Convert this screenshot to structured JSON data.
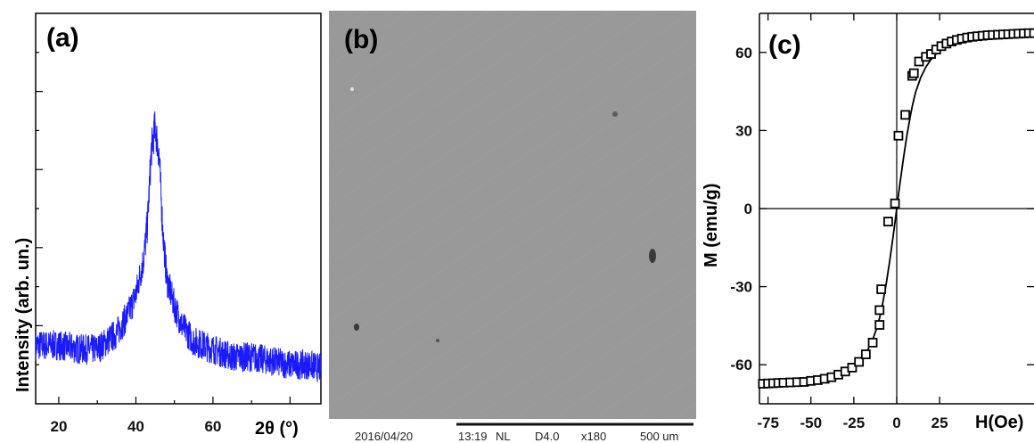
{
  "chart_data": [
    {
      "type": "line",
      "panel_label": "(a)",
      "xlabel": "2θ (°)",
      "ylabel": "Intensity (arb. un.)",
      "xlim": [
        14,
        88
      ],
      "ylim": [
        0,
        10
      ],
      "x_ticks": [
        20,
        40,
        60
      ],
      "y_ticks_labeled": false,
      "color": "#1a1aff",
      "peak_center": 45,
      "series": [
        {
          "x": [
            14,
            20,
            25,
            30,
            35,
            38,
            40,
            42,
            43,
            44,
            45,
            46,
            47,
            48,
            50,
            52,
            55,
            60,
            65,
            70,
            75,
            80,
            85,
            88
          ],
          "y": [
            1.5,
            1.5,
            1.4,
            1.4,
            1.8,
            2.3,
            2.8,
            3.7,
            4.6,
            6.5,
            7.1,
            6.4,
            4.4,
            3.2,
            2.5,
            2.0,
            1.6,
            1.4,
            1.2,
            1.2,
            1.1,
            1.0,
            1.0,
            0.9
          ]
        }
      ]
    },
    {
      "type": "image",
      "panel_label": "(b)",
      "footer": {
        "date": "2016/04/20",
        "time": "13:19",
        "mode": "NL",
        "detector": "D4.0",
        "magnification": "x180",
        "scale": "500 um"
      }
    },
    {
      "type": "line",
      "panel_label": "(c)",
      "ylabel": "M (emu/g)",
      "xlabel": "H(Oe)",
      "xlim": [
        -80,
        80
      ],
      "ylim": [
        -75,
        75
      ],
      "x_ticks": [
        -75,
        -50,
        -25,
        0,
        25
      ],
      "y_ticks": [
        -60,
        -30,
        0,
        30,
        60
      ],
      "marker": "open-square",
      "series": [
        {
          "x": [
            -80,
            -77,
            -74,
            -71,
            -68,
            -65,
            -62,
            -59,
            -56,
            -53,
            -50,
            -47,
            -44,
            -41,
            -38,
            -35,
            -32,
            -29,
            -26,
            -23,
            -20,
            -17,
            -14,
            -11,
            -10,
            -9,
            -8,
            -6,
            -4,
            -2,
            -1,
            0,
            1,
            2,
            4,
            6,
            8,
            9,
            10,
            11,
            14,
            17,
            20,
            23,
            26,
            29,
            32,
            35,
            38,
            41,
            44,
            47,
            50,
            53,
            56,
            59,
            62,
            65,
            68,
            71,
            74,
            77,
            80
          ],
          "y": [
            -67.4,
            -67.3,
            -67.2,
            -67.1,
            -67.0,
            -66.9,
            -66.8,
            -66.7,
            -66.6,
            -66.4,
            -66.2,
            -66.0,
            -65.7,
            -65.3,
            -64.8,
            -64.2,
            -63.4,
            -62.4,
            -61.1,
            -59.4,
            -57.3,
            -54.4,
            -50.4,
            -44.7,
            -42.0,
            -39.1,
            -35.8,
            -28.4,
            -19.7,
            -10.2,
            -5.2,
            0,
            5.2,
            10.2,
            19.7,
            28.4,
            35.8,
            39.1,
            42.0,
            44.7,
            50.4,
            54.4,
            57.3,
            59.4,
            61.1,
            62.4,
            63.4,
            64.2,
            64.8,
            65.3,
            65.7,
            66.0,
            66.2,
            66.4,
            66.6,
            66.7,
            66.8,
            66.9,
            67.0,
            67.1,
            67.2,
            67.3,
            67.4
          ]
        }
      ],
      "markers": {
        "x": [
          -78,
          -75,
          -72,
          -69,
          -66,
          -62,
          -58,
          -54,
          -50,
          -46,
          -42,
          -38,
          -34,
          -30,
          -26,
          -22,
          -18,
          -14,
          -10,
          -10,
          -9,
          -5,
          -1,
          1,
          5,
          9,
          10,
          13,
          17,
          20,
          23,
          26,
          29,
          32,
          35,
          38,
          41,
          44,
          47,
          50,
          53,
          56,
          59,
          62,
          65,
          68,
          71,
          74,
          77,
          80
        ],
        "y": [
          -67.3,
          -67.2,
          -67.1,
          -67.0,
          -66.9,
          -66.8,
          -66.7,
          -66.6,
          -66.2,
          -65.9,
          -65.4,
          -64.8,
          -63.8,
          -62.6,
          -61.1,
          -58.9,
          -56.0,
          -51.5,
          -44.7,
          -39.0,
          -31.0,
          -5.0,
          2.0,
          28.0,
          36.0,
          51.0,
          52.0,
          56.5,
          58.3,
          59.4,
          61.1,
          62.4,
          63.4,
          64.2,
          64.8,
          65.3,
          65.7,
          66.0,
          66.2,
          66.4,
          66.6,
          66.7,
          66.8,
          66.9,
          67.0,
          67.1,
          67.2,
          67.3,
          67.4,
          67.4
        ]
      }
    }
  ]
}
